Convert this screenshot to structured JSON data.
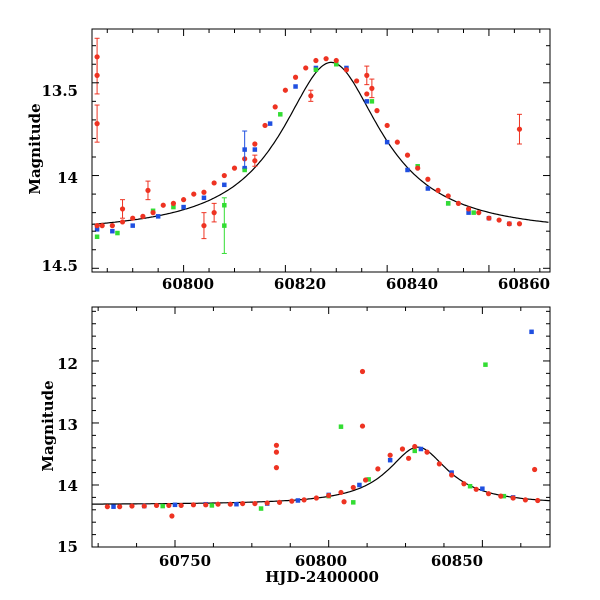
{
  "chart_data": [
    {
      "type": "scatter",
      "title": "",
      "xlabel": "",
      "ylabel": "Magnitude",
      "xlim": [
        60782,
        60872
      ],
      "ylim": [
        14.52,
        13.21
      ],
      "y_inverted": true,
      "xticks": [
        60800,
        60820,
        60840,
        60860
      ],
      "xtick_labels": [
        "60800",
        "60820",
        "60840",
        "60860"
      ],
      "yticks": [
        13.5,
        14,
        14.5
      ],
      "ytick_labels": [
        "13.5",
        "14",
        "14.5"
      ],
      "colors": {
        "red": "#ee3322",
        "blue": "#1f4fe0",
        "green": "#33dd33",
        "curve": "#000000"
      },
      "model_curve": {
        "t0": 60829,
        "peak_mag": 13.39,
        "amplitude": 0.93,
        "width": 12
      },
      "series": [
        {
          "color": "blue",
          "x": [
            60783,
            60786,
            60790,
            60795,
            60800,
            60804,
            60808,
            60812,
            60814,
            60817,
            60822,
            60826,
            60832,
            60836,
            60840,
            60844,
            60848,
            60852,
            60856,
            60860,
            60864
          ],
          "y": [
            14.29,
            14.3,
            14.27,
            14.22,
            14.17,
            14.12,
            14.05,
            13.96,
            13.86,
            13.72,
            13.52,
            13.42,
            13.42,
            13.6,
            13.82,
            13.97,
            14.07,
            14.15,
            14.2,
            14.23,
            14.26
          ]
        },
        {
          "color": "green",
          "x": [
            60783,
            60787,
            60794,
            60798,
            60808,
            60812,
            60819,
            60826,
            60830,
            60837,
            60846,
            60852,
            60857
          ],
          "y": [
            14.33,
            14.31,
            14.19,
            14.17,
            14.16,
            13.97,
            13.67,
            13.43,
            13.4,
            13.6,
            13.95,
            14.15,
            14.2
          ]
        },
        {
          "color": "red",
          "x": [
            60783,
            60784,
            60786,
            60788,
            60790,
            60792,
            60794,
            60796,
            60798,
            60800,
            60802,
            60804,
            60806,
            60808,
            60810,
            60812,
            60814,
            60816,
            60818,
            60820,
            60822,
            60824,
            60826,
            60828,
            60830,
            60832,
            60834,
            60836,
            60838,
            60840,
            60842,
            60844,
            60846,
            60848,
            60850,
            60852,
            60854,
            60856,
            60858,
            60860,
            60862,
            60864,
            60866
          ],
          "y": [
            14.27,
            14.27,
            14.27,
            14.25,
            14.23,
            14.22,
            14.2,
            14.16,
            14.15,
            14.13,
            14.1,
            14.09,
            14.04,
            14,
            13.96,
            13.91,
            13.83,
            13.73,
            13.63,
            13.54,
            13.47,
            13.42,
            13.38,
            13.37,
            13.38,
            13.43,
            13.49,
            13.56,
            13.65,
            13.73,
            13.82,
            13.89,
            13.96,
            14.02,
            14.08,
            14.11,
            14.15,
            14.18,
            14.2,
            14.23,
            14.24,
            14.26,
            14.26
          ]
        },
        {
          "color": "red",
          "outlier": true,
          "x": [
            60783,
            60783,
            60783,
            60788,
            60793,
            60804,
            60806,
            60814,
            60825,
            60836,
            60837,
            60866
          ],
          "y": [
            13.36,
            13.46,
            13.72,
            14.18,
            14.08,
            14.27,
            14.2,
            13.92,
            13.57,
            13.46,
            13.53,
            13.75
          ],
          "err": [
            0.1,
            0.1,
            0.1,
            0.05,
            0.05,
            0.07,
            0.05,
            0.03,
            0.03,
            0.05,
            0.05,
            0.08
          ]
        },
        {
          "color": "blue",
          "outlier": true,
          "x": [
            60812
          ],
          "y": [
            13.86
          ],
          "err": [
            0.1
          ]
        },
        {
          "color": "green",
          "outlier": true,
          "x": [
            60808
          ],
          "y": [
            14.27
          ],
          "err": [
            0.15
          ]
        }
      ]
    },
    {
      "type": "scatter",
      "title": "",
      "xlabel": "HJD-2400000",
      "ylabel": "Magnitude",
      "xlim": [
        60723,
        60872
      ],
      "ylim": [
        15.0,
        11.13
      ],
      "y_inverted": true,
      "xticks": [
        60750,
        60800,
        60850
      ],
      "xtick_labels": [
        "60750",
        "60800",
        "60850"
      ],
      "yticks": [
        12,
        13,
        14,
        15
      ],
      "ytick_labels": [
        "12",
        "13",
        "14",
        "15"
      ],
      "colors": {
        "red": "#ee3322",
        "blue": "#1f4fe0",
        "green": "#33dd33",
        "curve": "#000000"
      },
      "model_curve": {
        "t0": 60829,
        "peak_mag": 13.39,
        "amplitude": 0.93,
        "width": 12
      },
      "series": [
        {
          "color": "blue",
          "x": [
            60730,
            60740,
            60750,
            60760,
            60770,
            60780,
            60790,
            60800,
            60810,
            60820,
            60830,
            60840,
            60850,
            60860
          ],
          "y": [
            14.35,
            14.34,
            14.32,
            14.31,
            14.31,
            14.3,
            14.25,
            14.16,
            14,
            13.6,
            13.42,
            13.8,
            14.06,
            14.2
          ]
        },
        {
          "color": "green",
          "x": [
            60746,
            60762,
            60778,
            60800,
            60813,
            60828,
            60846,
            60857
          ],
          "y": [
            14.34,
            14.33,
            14.38,
            14.18,
            13.91,
            13.45,
            14.02,
            14.18
          ]
        },
        {
          "color": "red",
          "x": [
            60728,
            60732,
            60736,
            60740,
            60744,
            60748,
            60752,
            60756,
            60760,
            60764,
            60768,
            60772,
            60776,
            60780,
            60784,
            60788,
            60792,
            60796,
            60800,
            60804,
            60808,
            60812,
            60816,
            60820,
            60824,
            60828,
            60832,
            60836,
            60840,
            60844,
            60848,
            60852,
            60856,
            60860,
            60864,
            60868
          ],
          "y": [
            14.35,
            14.35,
            14.34,
            14.34,
            14.33,
            14.33,
            14.33,
            14.32,
            14.32,
            14.31,
            14.31,
            14.3,
            14.3,
            14.29,
            14.28,
            14.26,
            14.24,
            14.21,
            14.17,
            14.12,
            14.04,
            13.92,
            13.74,
            13.52,
            13.42,
            13.38,
            13.47,
            13.66,
            13.84,
            13.98,
            14.07,
            14.14,
            14.18,
            14.21,
            14.24,
            14.25
          ]
        },
        {
          "color": "red",
          "outlier": true,
          "x": [
            60749,
            60783,
            60783,
            60783,
            60805,
            60811,
            60811,
            60826,
            60867
          ],
          "y": [
            14.5,
            13.36,
            13.47,
            13.72,
            14.27,
            12.17,
            13.05,
            13.57,
            13.75
          ]
        },
        {
          "color": "green",
          "outlier": true,
          "x": [
            60804,
            60808,
            60851
          ],
          "y": [
            13.06,
            14.28,
            12.06
          ]
        },
        {
          "color": "blue",
          "outlier": true,
          "x": [
            60866
          ],
          "y": [
            11.53
          ]
        }
      ]
    }
  ]
}
